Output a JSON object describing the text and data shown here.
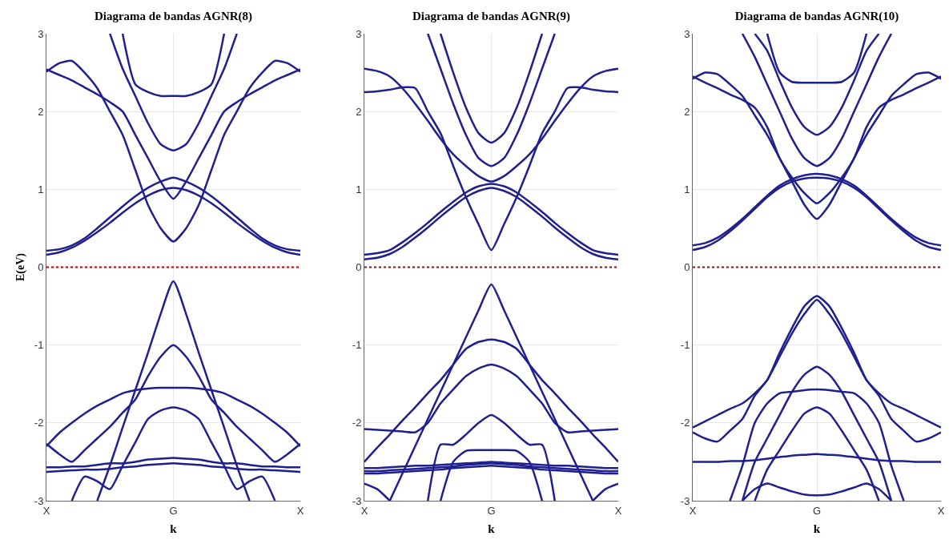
{
  "chart_data": [
    {
      "type": "line",
      "title": "Diagrama de bandas AGNR(8)",
      "xlabel": "k",
      "ylabel": "E(eV)",
      "categories": [
        "X",
        null,
        null,
        null,
        null,
        null,
        null,
        null,
        null,
        null,
        "G",
        null,
        null,
        null,
        null,
        null,
        null,
        null,
        null,
        null,
        "X"
      ],
      "ylim": [
        -3,
        3
      ],
      "yticks": [
        -3,
        -2,
        -1,
        0,
        1,
        2,
        3
      ],
      "grid": true,
      "ref_lines": [
        {
          "axis": "y",
          "value": 0,
          "color": "#c00000",
          "line_style": "dotted"
        }
      ],
      "series": [
        {
          "color": "#1f1f8f",
          "values": [
            0.16,
            0.19,
            0.25,
            0.34,
            0.45,
            0.57,
            0.7,
            0.82,
            0.92,
            0.99,
            1.02,
            0.99,
            0.92,
            0.82,
            0.7,
            0.57,
            0.45,
            0.34,
            0.25,
            0.19,
            0.16
          ]
        },
        {
          "color": "#1f1f8f",
          "values": [
            0.21,
            0.23,
            0.28,
            0.37,
            0.5,
            0.64,
            0.78,
            0.91,
            1.02,
            1.1,
            1.15,
            1.1,
            1.02,
            0.91,
            0.78,
            0.64,
            0.5,
            0.37,
            0.28,
            0.23,
            0.21
          ]
        },
        {
          "color": "#1f1f8f",
          "values": [
            2.51,
            2.62,
            2.65,
            2.5,
            2.3,
            2.0,
            1.7,
            1.25,
            0.8,
            0.5,
            0.33,
            0.5,
            0.8,
            1.25,
            1.7,
            2.0,
            2.3,
            2.5,
            2.65,
            2.62,
            2.51
          ]
        },
        {
          "color": "#1f1f8f",
          "values": [
            2.54,
            2.47,
            2.4,
            2.31,
            2.22,
            2.12,
            2.0,
            1.7,
            1.4,
            1.1,
            0.88,
            1.1,
            1.4,
            1.7,
            2.0,
            2.12,
            2.22,
            2.31,
            2.4,
            2.47,
            2.54
          ]
        },
        {
          "color": "#1f1f8f",
          "values": [
            null,
            null,
            null,
            null,
            null,
            3,
            2.55,
            2.2,
            1.85,
            1.58,
            1.5,
            1.58,
            1.85,
            2.2,
            2.55,
            3,
            null,
            null,
            null,
            null,
            null
          ]
        },
        {
          "color": "#1f1f8f",
          "values": [
            null,
            null,
            null,
            null,
            null,
            null,
            3,
            2.35,
            2.25,
            2.2,
            2.2,
            2.2,
            2.25,
            2.35,
            3,
            null,
            null,
            null,
            null,
            null,
            null
          ]
        },
        {
          "color": "#1f1f8f",
          "values": [
            null,
            null,
            null,
            null,
            -3,
            -2.55,
            -2.06,
            -1.58,
            -1.1,
            -0.6,
            -0.18,
            -0.6,
            -1.1,
            -1.58,
            -2.06,
            -2.55,
            -3,
            null,
            null,
            null,
            null
          ]
        },
        {
          "color": "#1f1f8f",
          "values": [
            -2.27,
            -2.4,
            -2.5,
            -2.35,
            -2.2,
            -2.05,
            -1.87,
            -1.7,
            -1.4,
            -1.15,
            -1.0,
            -1.15,
            -1.4,
            -1.7,
            -1.87,
            -2.05,
            -2.2,
            -2.35,
            -2.5,
            -2.4,
            -2.27
          ]
        },
        {
          "color": "#1f1f8f",
          "values": [
            -2.3,
            -2.13,
            -2.0,
            -1.88,
            -1.78,
            -1.7,
            -1.62,
            -1.58,
            -1.56,
            -1.55,
            -1.55,
            -1.55,
            -1.56,
            -1.58,
            -1.62,
            -1.7,
            -1.78,
            -1.88,
            -2.0,
            -2.13,
            -2.3
          ]
        },
        {
          "color": "#1f1f8f",
          "values": [
            null,
            null,
            -3,
            -2.69,
            -2.75,
            -2.85,
            -2.55,
            -2.25,
            -1.95,
            -1.84,
            -1.8,
            -1.84,
            -1.95,
            -2.25,
            -2.55,
            -2.85,
            -2.75,
            -2.69,
            -3,
            null,
            null
          ]
        },
        {
          "color": "#1f1f8f",
          "values": [
            -2.57,
            -2.57,
            -2.56,
            -2.56,
            -2.54,
            -2.52,
            -2.52,
            -2.5,
            -2.47,
            -2.46,
            -2.45,
            -2.46,
            -2.47,
            -2.5,
            -2.52,
            -2.52,
            -2.54,
            -2.56,
            -2.56,
            -2.57,
            -2.57
          ]
        },
        {
          "color": "#1f1f8f",
          "values": [
            -2.63,
            -2.62,
            -2.61,
            -2.6,
            -2.6,
            -2.59,
            -2.57,
            -2.56,
            -2.54,
            -2.53,
            -2.52,
            -2.53,
            -2.54,
            -2.56,
            -2.57,
            -2.59,
            -2.6,
            -2.6,
            -2.61,
            -2.62,
            -2.63
          ]
        }
      ]
    },
    {
      "type": "line",
      "title": "Diagrama de bandas AGNR(9)",
      "xlabel": "k",
      "categories": [
        "X",
        null,
        null,
        null,
        null,
        null,
        null,
        null,
        null,
        null,
        "G",
        null,
        null,
        null,
        null,
        null,
        null,
        null,
        null,
        null,
        "X"
      ],
      "ylim": [
        -3,
        3
      ],
      "yticks": [
        -3,
        -2,
        -1,
        0,
        1,
        2,
        3
      ],
      "grid": true,
      "ref_lines": [
        {
          "axis": "y",
          "value": 0,
          "color": "#c00000",
          "line_style": "dotted"
        }
      ],
      "series": [
        {
          "color": "#1f1f8f",
          "values": [
            0.1,
            0.12,
            0.17,
            0.26,
            0.38,
            0.51,
            0.65,
            0.78,
            0.9,
            0.98,
            1.02,
            0.98,
            0.9,
            0.78,
            0.65,
            0.51,
            0.38,
            0.26,
            0.17,
            0.12,
            0.1
          ]
        },
        {
          "color": "#1f1f8f",
          "values": [
            0.16,
            0.18,
            0.22,
            0.32,
            0.44,
            0.57,
            0.71,
            0.84,
            0.96,
            1.04,
            1.07,
            1.04,
            0.96,
            0.84,
            0.71,
            0.57,
            0.44,
            0.32,
            0.22,
            0.18,
            0.16
          ]
        },
        {
          "color": "#1f1f8f",
          "values": [
            2.25,
            2.26,
            2.28,
            2.31,
            2.3,
            2.0,
            1.72,
            1.3,
            0.9,
            0.55,
            0.22,
            0.55,
            0.9,
            1.3,
            1.72,
            2.0,
            2.3,
            2.31,
            2.28,
            2.26,
            2.25
          ]
        },
        {
          "color": "#1f1f8f",
          "values": [
            2.55,
            2.52,
            2.45,
            2.3,
            2.1,
            1.88,
            1.65,
            1.45,
            1.3,
            1.17,
            1.1,
            1.17,
            1.3,
            1.45,
            1.65,
            1.88,
            2.1,
            2.3,
            2.45,
            2.52,
            2.55
          ]
        },
        {
          "color": "#1f1f8f",
          "values": [
            null,
            null,
            null,
            null,
            null,
            3,
            2.55,
            2.1,
            1.7,
            1.4,
            1.3,
            1.4,
            1.7,
            2.1,
            2.55,
            3,
            null,
            null,
            null,
            null,
            null
          ]
        },
        {
          "color": "#1f1f8f",
          "values": [
            null,
            null,
            null,
            null,
            null,
            null,
            3,
            2.5,
            2.05,
            1.72,
            1.6,
            1.72,
            2.05,
            2.5,
            3,
            null,
            null,
            null,
            null,
            null,
            null
          ]
        },
        {
          "color": "#1f1f8f",
          "values": [
            null,
            null,
            -3,
            -2.65,
            -2.3,
            -1.95,
            -1.6,
            -1.25,
            -0.9,
            -0.55,
            -0.22,
            -0.55,
            -0.9,
            -1.25,
            -1.6,
            -1.95,
            -2.3,
            -2.65,
            -3,
            null,
            null
          ]
        },
        {
          "color": "#1f1f8f",
          "values": [
            -2.5,
            -2.32,
            -2.15,
            -1.97,
            -1.8,
            -1.62,
            -1.45,
            -1.25,
            -1.05,
            -0.96,
            -0.93,
            -0.96,
            -1.05,
            -1.25,
            -1.45,
            -1.62,
            -1.8,
            -1.97,
            -2.15,
            -2.32,
            -2.5
          ]
        },
        {
          "color": "#1f1f8f",
          "values": [
            -2.08,
            -2.09,
            -2.1,
            -2.11,
            -2.12,
            -2.0,
            -1.75,
            -1.57,
            -1.4,
            -1.3,
            -1.25,
            -1.3,
            -1.4,
            -1.57,
            -1.75,
            -2.0,
            -2.12,
            -2.11,
            -2.1,
            -2.09,
            -2.08
          ]
        },
        {
          "color": "#1f1f8f",
          "values": [
            null,
            null,
            null,
            null,
            null,
            -3,
            -2.28,
            -2.28,
            -2.15,
            -2.0,
            -1.9,
            -2.0,
            -2.15,
            -2.28,
            -2.28,
            -3,
            null,
            null,
            null,
            null,
            null
          ]
        },
        {
          "color": "#1f1f8f",
          "values": [
            null,
            null,
            null,
            null,
            null,
            null,
            -3,
            -2.5,
            -2.36,
            -2.35,
            -2.35,
            -2.35,
            -2.36,
            -2.5,
            -3,
            null,
            null,
            null,
            null,
            null,
            null
          ]
        },
        {
          "color": "#1f1f8f",
          "values": [
            -2.58,
            -2.58,
            -2.57,
            -2.56,
            -2.55,
            -2.55,
            -2.54,
            -2.53,
            -2.52,
            -2.51,
            -2.5,
            -2.51,
            -2.52,
            -2.53,
            -2.54,
            -2.55,
            -2.55,
            -2.56,
            -2.57,
            -2.58,
            -2.58
          ]
        },
        {
          "color": "#1f1f8f",
          "values": [
            -2.62,
            -2.62,
            -2.61,
            -2.6,
            -2.59,
            -2.58,
            -2.57,
            -2.56,
            -2.54,
            -2.53,
            -2.52,
            -2.53,
            -2.54,
            -2.56,
            -2.57,
            -2.58,
            -2.59,
            -2.6,
            -2.61,
            -2.62,
            -2.62
          ]
        },
        {
          "color": "#1f1f8f",
          "values": [
            -2.65,
            -2.65,
            -2.64,
            -2.63,
            -2.62,
            -2.61,
            -2.6,
            -2.58,
            -2.57,
            -2.56,
            -2.55,
            -2.56,
            -2.57,
            -2.58,
            -2.6,
            -2.61,
            -2.62,
            -2.63,
            -2.64,
            -2.65,
            -2.65
          ]
        },
        {
          "color": "#1f1f8f",
          "values": [
            -2.78,
            -2.85,
            -3,
            null,
            null,
            null,
            null,
            null,
            null,
            null,
            null,
            null,
            null,
            null,
            null,
            null,
            null,
            null,
            -3,
            -2.85,
            -2.78
          ]
        }
      ]
    },
    {
      "type": "line",
      "title": "Diagrama de bandas AGNR(10)",
      "xlabel": "k",
      "categories": [
        "X",
        null,
        null,
        null,
        null,
        null,
        null,
        null,
        null,
        null,
        "G",
        null,
        null,
        null,
        null,
        null,
        null,
        null,
        null,
        null,
        "X"
      ],
      "ylim": [
        -3,
        3
      ],
      "yticks": [
        -3,
        -2,
        -1,
        0,
        1,
        2,
        3
      ],
      "grid": true,
      "ref_lines": [
        {
          "axis": "y",
          "value": 0,
          "color": "#c00000",
          "line_style": "dotted"
        }
      ],
      "series": [
        {
          "color": "#1f1f8f",
          "values": [
            0.22,
            0.26,
            0.34,
            0.46,
            0.6,
            0.75,
            0.9,
            1.02,
            1.1,
            1.14,
            1.15,
            1.14,
            1.1,
            1.02,
            0.9,
            0.75,
            0.6,
            0.46,
            0.34,
            0.26,
            0.22
          ]
        },
        {
          "color": "#1f1f8f",
          "values": [
            0.28,
            0.31,
            0.38,
            0.49,
            0.62,
            0.77,
            0.92,
            1.05,
            1.13,
            1.18,
            1.2,
            1.18,
            1.13,
            1.05,
            0.92,
            0.77,
            0.62,
            0.49,
            0.38,
            0.31,
            0.28
          ]
        },
        {
          "color": "#1f1f8f",
          "values": [
            2.42,
            2.5,
            2.48,
            2.35,
            2.2,
            1.95,
            1.7,
            1.4,
            1.1,
            0.8,
            0.62,
            0.8,
            1.1,
            1.4,
            1.7,
            1.95,
            2.2,
            2.35,
            2.48,
            2.5,
            2.42
          ]
        },
        {
          "color": "#1f1f8f",
          "values": [
            2.45,
            2.37,
            2.3,
            2.22,
            2.15,
            2.05,
            1.8,
            1.4,
            1.15,
            0.95,
            0.82,
            0.95,
            1.15,
            1.4,
            1.8,
            2.05,
            2.15,
            2.22,
            2.3,
            2.37,
            2.45
          ]
        },
        {
          "color": "#1f1f8f",
          "values": [
            null,
            null,
            null,
            null,
            3,
            2.7,
            2.35,
            2.0,
            1.65,
            1.4,
            1.3,
            1.4,
            1.65,
            2.0,
            2.35,
            2.7,
            3,
            null,
            null,
            null,
            null
          ]
        },
        {
          "color": "#1f1f8f",
          "values": [
            null,
            null,
            null,
            null,
            null,
            3,
            2.78,
            2.4,
            2.05,
            1.8,
            1.7,
            1.8,
            2.05,
            2.4,
            2.78,
            3,
            null,
            null,
            null,
            null,
            null
          ]
        },
        {
          "color": "#1f1f8f",
          "values": [
            null,
            null,
            null,
            null,
            null,
            null,
            3,
            2.5,
            2.38,
            2.37,
            2.37,
            2.37,
            2.38,
            2.5,
            3,
            null,
            null,
            null,
            null,
            null,
            null
          ]
        },
        {
          "color": "#1f1f8f",
          "values": [
            -2.06,
            -1.98,
            -1.9,
            -1.82,
            -1.75,
            -1.62,
            -1.45,
            -1.1,
            -0.78,
            -0.5,
            -0.37,
            -0.5,
            -0.78,
            -1.1,
            -1.45,
            -1.62,
            -1.75,
            -1.82,
            -1.9,
            -1.98,
            -2.06
          ]
        },
        {
          "color": "#1f1f8f",
          "values": [
            -2.12,
            -2.2,
            -2.24,
            -2.1,
            -1.95,
            -1.65,
            -1.45,
            -1.15,
            -0.85,
            -0.6,
            -0.42,
            -0.6,
            -0.85,
            -1.15,
            -1.45,
            -1.65,
            -1.95,
            -2.1,
            -2.24,
            -2.2,
            -2.12
          ]
        },
        {
          "color": "#1f1f8f",
          "values": [
            null,
            null,
            null,
            -3,
            -2.55,
            -2.0,
            -1.75,
            -1.62,
            -1.6,
            -1.58,
            -1.57,
            -1.58,
            -1.6,
            -1.62,
            -1.75,
            -2.0,
            -2.55,
            -3,
            null,
            null,
            null
          ]
        },
        {
          "color": "#1f1f8f",
          "values": [
            null,
            null,
            null,
            null,
            -3,
            -2.5,
            -2.2,
            -1.9,
            -1.6,
            -1.38,
            -1.28,
            -1.38,
            -1.6,
            -1.9,
            -2.2,
            -2.5,
            -3,
            null,
            null,
            null,
            null
          ]
        },
        {
          "color": "#1f1f8f",
          "values": [
            null,
            null,
            null,
            null,
            null,
            -3,
            -2.6,
            -2.35,
            -2.1,
            -1.88,
            -1.8,
            -1.88,
            -2.1,
            -2.35,
            -2.6,
            -3,
            null,
            null,
            null,
            null,
            null
          ]
        },
        {
          "color": "#1f1f8f",
          "values": [
            -2.5,
            -2.5,
            -2.5,
            -2.49,
            -2.49,
            -2.48,
            -2.46,
            -2.44,
            -2.42,
            -2.41,
            -2.4,
            -2.41,
            -2.42,
            -2.44,
            -2.46,
            -2.48,
            -2.49,
            -2.49,
            -2.5,
            -2.5,
            -2.5
          ]
        },
        {
          "color": "#1f1f8f",
          "values": [
            null,
            null,
            null,
            null,
            -3,
            -2.85,
            -2.78,
            -2.83,
            -2.88,
            -2.92,
            -2.93,
            -2.92,
            -2.88,
            -2.83,
            -2.78,
            -2.85,
            -3,
            null,
            null,
            null,
            null
          ]
        }
      ]
    }
  ]
}
